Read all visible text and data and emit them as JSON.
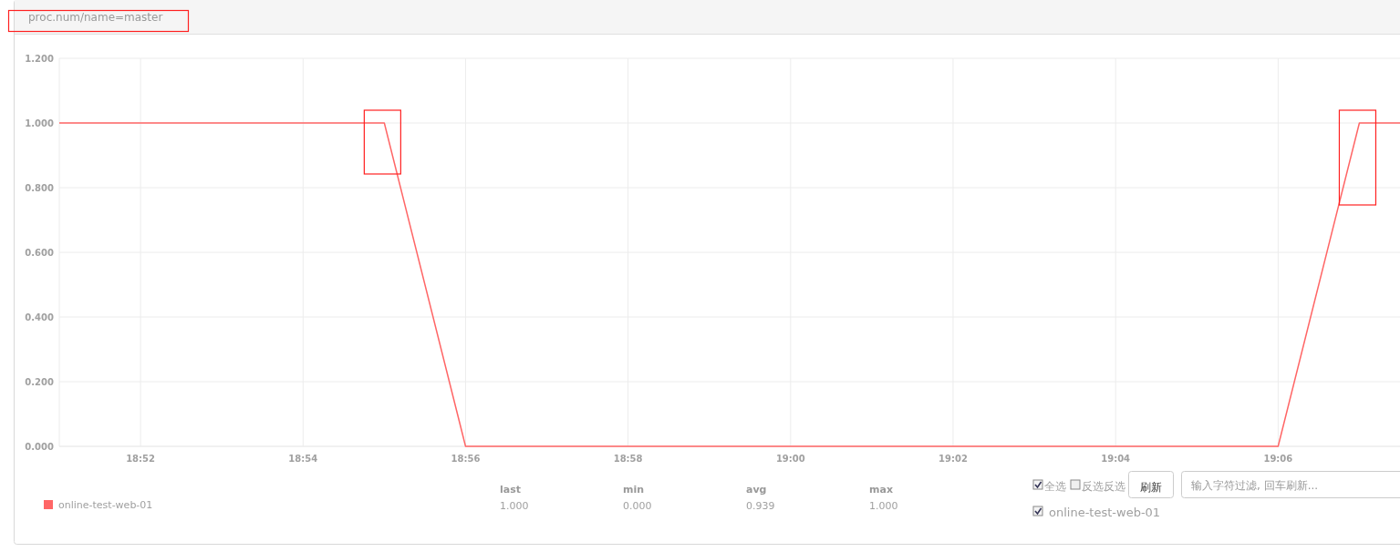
{
  "chart_data": {
    "type": "line",
    "title": "proc.num/name=master",
    "x": [
      18.85,
      18.866667,
      18.883333,
      18.9,
      18.916667,
      18.933333,
      18.95,
      18.966667,
      18.983333,
      19,
      19.016667,
      19.033333,
      19.05,
      19.066667,
      19.083333,
      19.1,
      19.116667,
      19.125
    ],
    "series": [
      {
        "name": "online-test-web-01",
        "color": "#ff6666",
        "values": [
          1,
          1,
          1,
          1,
          1,
          0,
          0,
          0,
          0,
          0,
          0,
          0,
          0,
          0,
          0,
          0,
          1,
          1
        ]
      }
    ],
    "xlim": [
      18.85,
      19.125
    ],
    "xticks": [
      {
        "value": 18.866667,
        "label": "18:52"
      },
      {
        "value": 18.9,
        "label": "18:54"
      },
      {
        "value": 18.933333,
        "label": "18:56"
      },
      {
        "value": 18.966667,
        "label": "18:58"
      },
      {
        "value": 19,
        "label": "19:00"
      },
      {
        "value": 19.033333,
        "label": "19:02"
      },
      {
        "value": 19.066667,
        "label": "19:04"
      },
      {
        "value": 19.1,
        "label": "19:06"
      }
    ],
    "ylim": [
      0,
      1.2
    ],
    "yticks": [
      {
        "value": 0,
        "label": "0.000"
      },
      {
        "value": 0.2,
        "label": "0.200"
      },
      {
        "value": 0.4,
        "label": "0.400"
      },
      {
        "value": 0.6,
        "label": "0.600"
      },
      {
        "value": 0.8,
        "label": "0.800"
      },
      {
        "value": 1,
        "label": "1.000"
      },
      {
        "value": 1.2,
        "label": "1.200"
      }
    ],
    "grid": true,
    "legend": "bottom left",
    "marker": "none",
    "line_style": "solid",
    "annotations": [
      "last",
      "1.000",
      "min",
      "0.000",
      "avg",
      "0.939",
      "max",
      "1.000",
      "全选",
      "反选反选",
      "刷新",
      "输入字符过滤, 回车刷新...",
      "online-test-web-01"
    ]
  }
}
